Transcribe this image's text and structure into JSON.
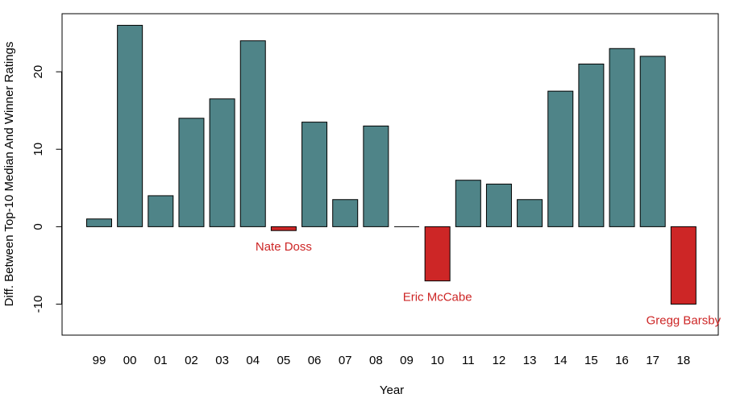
{
  "chart_data": {
    "type": "bar",
    "title": "",
    "xlabel": "Year",
    "ylabel": "Diff. Between Top-10 Median And Winner Ratings",
    "categories": [
      "99",
      "00",
      "01",
      "02",
      "03",
      "04",
      "05",
      "06",
      "07",
      "08",
      "09",
      "10",
      "11",
      "12",
      "13",
      "14",
      "15",
      "16",
      "17",
      "18"
    ],
    "values": [
      1,
      26,
      4,
      14,
      16.5,
      24,
      -0.5,
      13.5,
      3.5,
      13,
      0,
      -7,
      6,
      5.5,
      3.5,
      17.5,
      21,
      23,
      22,
      -10
    ],
    "ylim": [
      -14,
      27.5
    ],
    "yticks": [
      -10,
      0,
      10,
      20
    ],
    "grid": false,
    "colors": {
      "positive": "#4f8488",
      "negative": "#cd2626",
      "annotation": "#cd2626"
    },
    "annotations": [
      {
        "category": "05",
        "text": "Nate Doss"
      },
      {
        "category": "10",
        "text": "Eric McCabe"
      },
      {
        "category": "18",
        "text": "Gregg Barsby"
      }
    ]
  }
}
